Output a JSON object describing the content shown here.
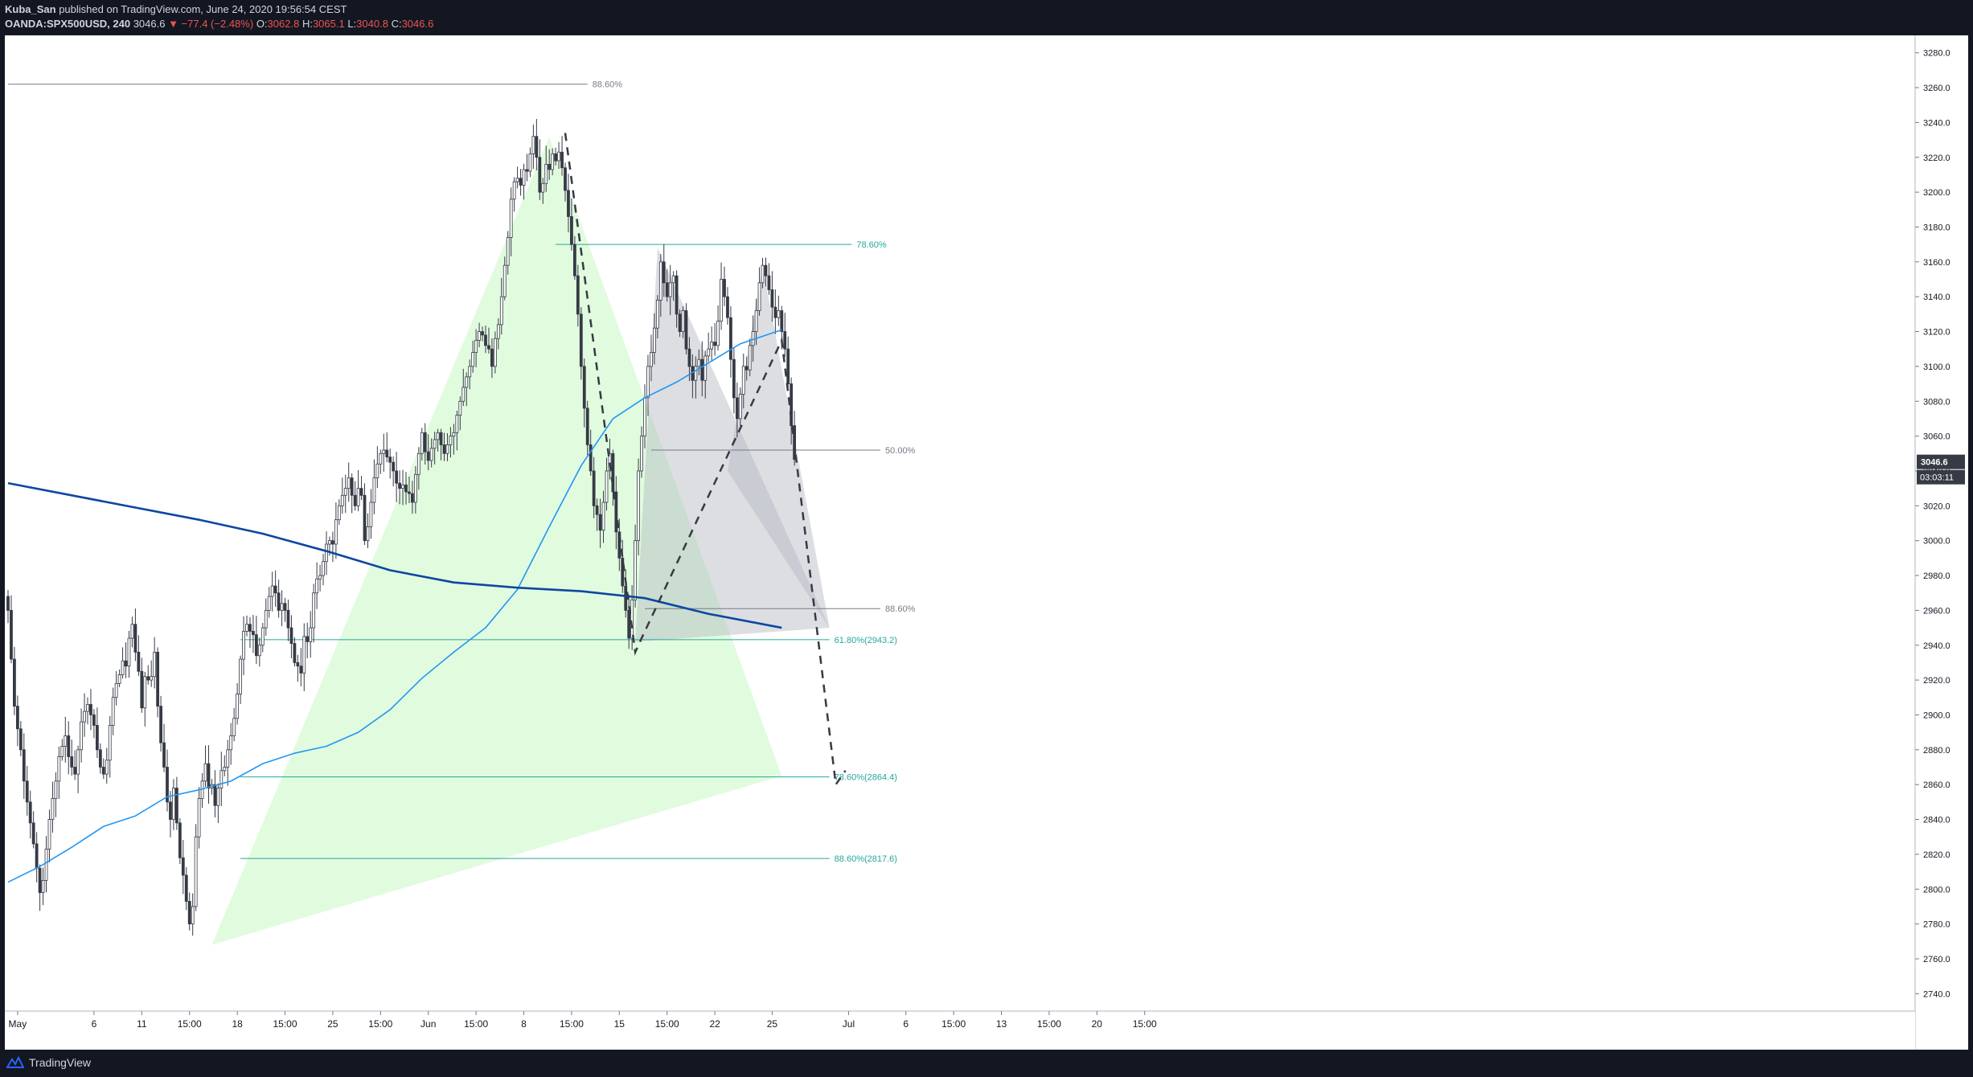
{
  "header": {
    "author": "Kuba_San",
    "published_text": "published on TradingView.com, June 24, 2020 19:56:54 CEST",
    "symbol": "OANDA:SPX500USD, 240",
    "last": "3046.6",
    "change": "▼ −77.4 (−2.48%)",
    "o_label": "O:",
    "o_value": "3062.8",
    "h_label": "H:",
    "h_value": "3065.1",
    "l_label": "L:",
    "l_value": "3040.8",
    "c_label": "C:",
    "c_value": "3046.6"
  },
  "footer": {
    "brand": "TradingView",
    "logo_icon": "tradingview-logo-icon"
  },
  "colors": {
    "up_candle": "#ffffff",
    "down_candle": "#363a45",
    "candle_outline": "#363a45",
    "ma_fast": "#2196f3",
    "ma_slow": "#0d47a1",
    "fib_teal": "#26a69a",
    "fib_gray": "#787b86",
    "harmonic_green": "#c8f7c5",
    "harmonic_gray": "#b2b5be",
    "projection": "#363a45",
    "price_label_bg": "#363a45"
  },
  "chart_data": {
    "type": "candlestick",
    "timeframe": "240",
    "ylim": [
      2730,
      3290
    ],
    "y_ticks": [
      2740,
      2760,
      2780,
      2800,
      2820,
      2840,
      2860,
      2880,
      2900,
      2920,
      2940,
      2960,
      2980,
      3000,
      3020,
      3040,
      3060,
      3080,
      3100,
      3120,
      3140,
      3160,
      3180,
      3200,
      3220,
      3240,
      3260,
      3280
    ],
    "x_ticks": [
      "May",
      "6",
      "11",
      "15:00",
      "18",
      "15:00",
      "25",
      "15:00",
      "Jun",
      "15:00",
      "8",
      "15:00",
      "15",
      "15:00",
      "22",
      "25",
      "Jul",
      "6",
      "15:00",
      "13",
      "15:00",
      "20",
      "15:00"
    ],
    "x_tick_bar_index": [
      3,
      27,
      42,
      57,
      72,
      87,
      102,
      117,
      132,
      147,
      162,
      177,
      192,
      207,
      222,
      240,
      264,
      282,
      297,
      312,
      327,
      342,
      357
    ],
    "series": [
      {
        "kind": "candles",
        "close_path": [
          2960,
          2932,
          2905,
          2892,
          2880,
          2862,
          2850,
          2838,
          2826,
          2812,
          2798,
          2805,
          2823,
          2840,
          2852,
          2862,
          2876,
          2882,
          2888,
          2876,
          2870,
          2866,
          2880,
          2896,
          2902,
          2906,
          2900,
          2894,
          2880,
          2870,
          2866,
          2874,
          2894,
          2910,
          2918,
          2923,
          2931,
          2928,
          2944,
          2952,
          2936,
          2925,
          2904,
          2922,
          2920,
          2922,
          2936,
          2905,
          2884,
          2870,
          2850,
          2840,
          2858,
          2838,
          2818,
          2808,
          2793,
          2780,
          2790,
          2830,
          2852,
          2862,
          2872,
          2858,
          2860,
          2848,
          2858,
          2868,
          2870,
          2880,
          2888,
          2898,
          2912,
          2932,
          2948,
          2952,
          2948,
          2946,
          2934,
          2940,
          2950,
          2960,
          2968,
          2974,
          2970,
          2960,
          2964,
          2960,
          2950,
          2941,
          2930,
          2928,
          2924,
          2945,
          2942,
          2950,
          2970,
          2978,
          2980,
          2988,
          2998,
          3000,
          2998,
          3012,
          3020,
          3026,
          3030,
          3036,
          3026,
          3020,
          3030,
          3026,
          3000,
          3008,
          3022,
          3036,
          3044,
          3050,
          3052,
          3048,
          3045,
          3040,
          3033,
          3030,
          3032,
          3028,
          3027,
          3022,
          3038,
          3050,
          3062,
          3051,
          3046,
          3053,
          3058,
          3062,
          3055,
          3050,
          3055,
          3060,
          3062,
          3072,
          3080,
          3088,
          3094,
          3100,
          3108,
          3115,
          3120,
          3118,
          3112,
          3110,
          3100,
          3116,
          3124,
          3140,
          3158,
          3174,
          3196,
          3206,
          3208,
          3204,
          3213,
          3212,
          3222,
          3232,
          3220,
          3200,
          3205,
          3216,
          3213,
          3222,
          3218,
          3223,
          3214,
          3201,
          3186,
          3170,
          3152,
          3130,
          3100,
          3076,
          3055,
          3040,
          3020,
          3015,
          3006,
          3022,
          3040,
          3050,
          3028,
          3005,
          2990,
          2974,
          2960,
          2944,
          2966,
          3000,
          3040,
          3060,
          3082,
          3100,
          3108,
          3122,
          3138,
          3160,
          3148,
          3140,
          3148,
          3152,
          3130,
          3120,
          3132,
          3110,
          3100,
          3092,
          3100,
          3104,
          3092,
          3106,
          3110,
          3114,
          3112,
          3126,
          3150,
          3140,
          3128,
          3104,
          3082,
          3070,
          3084,
          3100,
          3098,
          3112,
          3120,
          3132,
          3148,
          3158,
          3152,
          3144,
          3134,
          3128,
          3132,
          3120,
          3110,
          3090,
          3066,
          3046.6
        ],
        "count": 244
      },
      {
        "kind": "line",
        "name": "",
        "color_ref": "ma_fast",
        "points": [
          [
            0,
            2804
          ],
          [
            10,
            2813
          ],
          [
            20,
            2824
          ],
          [
            30,
            2836
          ],
          [
            40,
            2842
          ],
          [
            50,
            2853
          ],
          [
            60,
            2857
          ],
          [
            70,
            2862
          ],
          [
            80,
            2872
          ],
          [
            90,
            2878
          ],
          [
            100,
            2882
          ],
          [
            110,
            2890
          ],
          [
            120,
            2903
          ],
          [
            130,
            2921
          ],
          [
            140,
            2936
          ],
          [
            150,
            2950
          ],
          [
            160,
            2972
          ],
          [
            170,
            3008
          ],
          [
            180,
            3043
          ],
          [
            190,
            3070
          ],
          [
            200,
            3082
          ],
          [
            210,
            3091
          ],
          [
            220,
            3102
          ],
          [
            230,
            3113
          ],
          [
            243,
            3121
          ]
        ]
      },
      {
        "kind": "line",
        "name": "",
        "color_ref": "ma_slow",
        "points": [
          [
            0,
            3033
          ],
          [
            20,
            3026
          ],
          [
            40,
            3019
          ],
          [
            60,
            3012
          ],
          [
            80,
            3004
          ],
          [
            100,
            2994
          ],
          [
            120,
            2983
          ],
          [
            140,
            2976
          ],
          [
            160,
            2973
          ],
          [
            180,
            2971
          ],
          [
            200,
            2967
          ],
          [
            220,
            2958
          ],
          [
            243,
            2950
          ]
        ]
      }
    ],
    "price_label": {
      "value": "3046.6",
      "countdown": "03:03:11"
    },
    "fib_levels": [
      {
        "label": "88.60%",
        "price": 3262,
        "x_start": 0,
        "x_end": 182,
        "color_ref": "fib_gray"
      },
      {
        "label": "78.60%",
        "price": 3170,
        "x_start": 172,
        "x_end": 265,
        "color_ref": "fib_teal"
      },
      {
        "label": "50.00%",
        "price": 3052,
        "x_start": 202,
        "x_end": 274,
        "color_ref": "fib_gray"
      },
      {
        "label": "88.60%",
        "price": 2961,
        "x_start": 200,
        "x_end": 274,
        "color_ref": "fib_gray"
      },
      {
        "label": "61.80%(2943.2)",
        "price": 2943.2,
        "x_start": 73,
        "x_end": 258,
        "color_ref": "fib_teal"
      },
      {
        "label": "78.60%(2864.4)",
        "price": 2864.4,
        "x_start": 73,
        "x_end": 258,
        "color_ref": "fib_teal"
      },
      {
        "label": "88.60%(2817.6)",
        "price": 2817.6,
        "x_start": 73,
        "x_end": 258,
        "color_ref": "fib_teal"
      }
    ],
    "harmonic_green": [
      [
        [
          64,
          2768
        ],
        [
          170,
          3232
        ],
        [
          195,
          2937
        ]
      ],
      [
        [
          64,
          2768
        ],
        [
          195,
          2937
        ],
        [
          243,
          2865
        ]
      ],
      [
        [
          170,
          3232
        ],
        [
          195,
          2937
        ],
        [
          243,
          2865
        ]
      ]
    ],
    "harmonic_gray": [
      [
        [
          197,
          2942
        ],
        [
          204,
          3168
        ],
        [
          226,
          3040
        ]
      ],
      [
        [
          197,
          2942
        ],
        [
          226,
          3040
        ],
        [
          258,
          2950
        ]
      ],
      [
        [
          204,
          3168
        ],
        [
          226,
          3040
        ],
        [
          258,
          2950
        ]
      ],
      [
        [
          226,
          3040
        ],
        [
          237,
          3158
        ],
        [
          258,
          2950
        ]
      ]
    ],
    "projection_path": [
      [
        175,
        3234
      ],
      [
        197,
        2936
      ],
      [
        199,
        2944
      ],
      [
        243,
        3115
      ],
      [
        260,
        2860
      ],
      [
        263,
        2868
      ]
    ]
  }
}
